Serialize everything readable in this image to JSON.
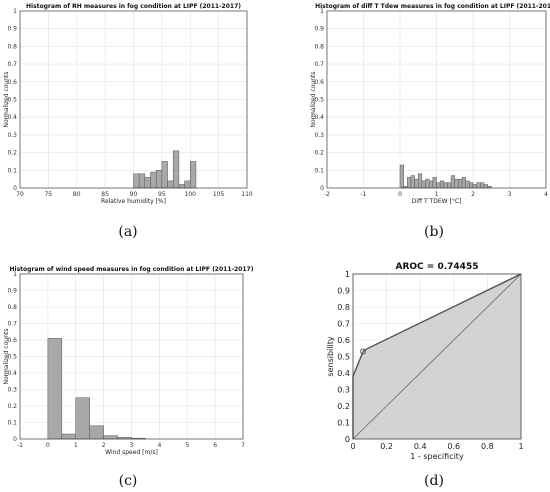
{
  "chart_data": [
    {
      "type": "bar",
      "panel": "(a)",
      "title": "Histogram of RH measures in fog condition at LIPF (2011-2017)",
      "xlabel": "Relative humidity [%]",
      "ylabel": "Normalized counts",
      "xlim": [
        70,
        110
      ],
      "ylim": [
        0,
        1
      ],
      "xticks": [
        70,
        75,
        80,
        85,
        90,
        95,
        100,
        105,
        110
      ],
      "yticks": [
        0,
        0.1,
        0.2,
        0.3,
        0.4,
        0.5,
        0.6,
        0.7,
        0.8,
        0.9,
        1
      ],
      "grid": true,
      "bins": [
        {
          "x0": 90,
          "x1": 91,
          "value": 0.08
        },
        {
          "x0": 91,
          "x1": 92,
          "value": 0.08
        },
        {
          "x0": 92,
          "x1": 93,
          "value": 0.06
        },
        {
          "x0": 93,
          "x1": 94,
          "value": 0.09
        },
        {
          "x0": 94,
          "x1": 95,
          "value": 0.1
        },
        {
          "x0": 95,
          "x1": 96,
          "value": 0.15
        },
        {
          "x0": 96,
          "x1": 97,
          "value": 0.04
        },
        {
          "x0": 97,
          "x1": 98,
          "value": 0.21
        },
        {
          "x0": 98,
          "x1": 99,
          "value": 0.02
        },
        {
          "x0": 99,
          "x1": 100,
          "value": 0.04
        },
        {
          "x0": 100,
          "x1": 101,
          "value": 0.15
        }
      ]
    },
    {
      "type": "bar",
      "panel": "(b)",
      "title": "Histogram of diff T Tdew measures in fog condition at LIPF (2011-2017)",
      "xlabel": "Diff T TDEW [°C]",
      "ylabel": "Normalized counts",
      "xlim": [
        -2,
        4
      ],
      "ylim": [
        0,
        1
      ],
      "xticks": [
        -2,
        -1,
        0,
        1,
        2,
        3,
        4
      ],
      "yticks": [
        0,
        0.1,
        0.2,
        0.3,
        0.4,
        0.5,
        0.6,
        0.7,
        0.8,
        0.9,
        1
      ],
      "grid": true,
      "bins": [
        {
          "x0": 0.0,
          "x1": 0.1,
          "value": 0.13
        },
        {
          "x0": 0.1,
          "x1": 0.2,
          "value": 0.01
        },
        {
          "x0": 0.2,
          "x1": 0.3,
          "value": 0.06
        },
        {
          "x0": 0.3,
          "x1": 0.4,
          "value": 0.07
        },
        {
          "x0": 0.4,
          "x1": 0.5,
          "value": 0.05
        },
        {
          "x0": 0.5,
          "x1": 0.6,
          "value": 0.08
        },
        {
          "x0": 0.6,
          "x1": 0.7,
          "value": 0.04
        },
        {
          "x0": 0.7,
          "x1": 0.8,
          "value": 0.05
        },
        {
          "x0": 0.8,
          "x1": 0.9,
          "value": 0.04
        },
        {
          "x0": 0.9,
          "x1": 1.0,
          "value": 0.06
        },
        {
          "x0": 1.0,
          "x1": 1.1,
          "value": 0.03
        },
        {
          "x0": 1.1,
          "x1": 1.2,
          "value": 0.04
        },
        {
          "x0": 1.2,
          "x1": 1.3,
          "value": 0.03
        },
        {
          "x0": 1.3,
          "x1": 1.4,
          "value": 0.03
        },
        {
          "x0": 1.4,
          "x1": 1.5,
          "value": 0.07
        },
        {
          "x0": 1.5,
          "x1": 1.6,
          "value": 0.05
        },
        {
          "x0": 1.6,
          "x1": 1.7,
          "value": 0.05
        },
        {
          "x0": 1.7,
          "x1": 1.8,
          "value": 0.06
        },
        {
          "x0": 1.8,
          "x1": 1.9,
          "value": 0.04
        },
        {
          "x0": 1.9,
          "x1": 2.0,
          "value": 0.03
        },
        {
          "x0": 2.0,
          "x1": 2.1,
          "value": 0.02
        },
        {
          "x0": 2.1,
          "x1": 2.2,
          "value": 0.03
        },
        {
          "x0": 2.2,
          "x1": 2.3,
          "value": 0.03
        },
        {
          "x0": 2.3,
          "x1": 2.4,
          "value": 0.02
        },
        {
          "x0": 2.4,
          "x1": 2.5,
          "value": 0.01
        }
      ]
    },
    {
      "type": "bar",
      "panel": "(c)",
      "title": "Histogram of wind speed measures in fog condition at LIPF (2011-2017)",
      "xlabel": "Wind speed [m/s]",
      "ylabel": "Normalized counts",
      "xlim": [
        -1,
        7
      ],
      "ylim": [
        0,
        1
      ],
      "xticks": [
        -1,
        0,
        1,
        2,
        3,
        4,
        5,
        6,
        7
      ],
      "yticks": [
        0,
        0.1,
        0.2,
        0.3,
        0.4,
        0.5,
        0.6,
        0.7,
        0.8,
        0.9,
        1
      ],
      "grid": true,
      "bins": [
        {
          "x0": 0.0,
          "x1": 0.5,
          "value": 0.61
        },
        {
          "x0": 0.5,
          "x1": 1.0,
          "value": 0.03
        },
        {
          "x0": 1.0,
          "x1": 1.5,
          "value": 0.25
        },
        {
          "x0": 1.5,
          "x1": 2.0,
          "value": 0.08
        },
        {
          "x0": 2.0,
          "x1": 2.5,
          "value": 0.02
        },
        {
          "x0": 2.5,
          "x1": 3.0,
          "value": 0.01
        },
        {
          "x0": 3.0,
          "x1": 3.5,
          "value": 0.005
        }
      ]
    },
    {
      "type": "line",
      "panel": "(d)",
      "title": "AROC = 0.74455",
      "xlabel": "1 - specificity",
      "ylabel": "sensibility",
      "xlim": [
        0,
        1
      ],
      "ylim": [
        0,
        1
      ],
      "xticks": [
        0,
        0.2,
        0.4,
        0.6,
        0.8,
        1
      ],
      "yticks": [
        0,
        0.1,
        0.2,
        0.3,
        0.4,
        0.5,
        0.6,
        0.7,
        0.8,
        0.9,
        1
      ],
      "grid": true,
      "series": [
        {
          "x": [
            0,
            0,
            0.06,
            0.07,
            1
          ],
          "y": [
            0,
            0.38,
            0.53,
            0.54,
            1
          ]
        },
        {
          "x": [
            0,
            1
          ],
          "y": [
            0,
            1
          ]
        }
      ],
      "markers": [
        {
          "x": 0.06,
          "y": 0.53
        }
      ],
      "fill_color": "#d3d3d3"
    }
  ],
  "captions": [
    "(a)",
    "(b)",
    "(c)",
    "(d)"
  ],
  "colors": {
    "bar_fill": "#a8a8a8",
    "bar_edge": "#555555",
    "grid": "#e3e3e3",
    "roc_fill": "#d3d3d3",
    "roc_line": "#555555"
  }
}
